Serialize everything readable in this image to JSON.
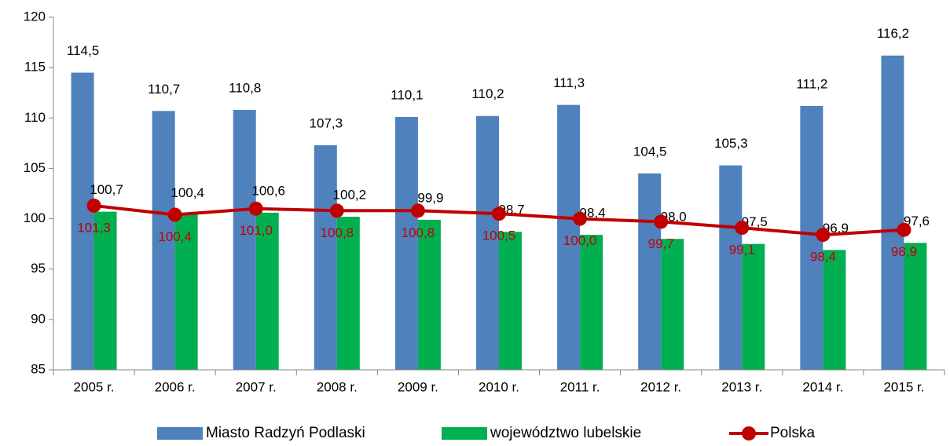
{
  "chart_data": {
    "type": "bar-line",
    "categories": [
      "2005 r.",
      "2006 r.",
      "2007 r.",
      "2008 r.",
      "2009 r.",
      "2010 r.",
      "2011 r.",
      "2012 r.",
      "2013 r.",
      "2014 r.",
      "2015 r."
    ],
    "series": [
      {
        "name": "Miasto Radzyń Podlaski",
        "type": "bar",
        "color": "#4f81bd",
        "values": [
          114.5,
          110.7,
          110.8,
          107.3,
          110.1,
          110.2,
          111.3,
          104.5,
          105.3,
          111.2,
          116.2
        ],
        "value_labels": [
          "114,5",
          "110,7",
          "110,8",
          "107,3",
          "110,1",
          "110,2",
          "111,3",
          "104,5",
          "105,3",
          "111,2",
          "116,2"
        ]
      },
      {
        "name": "województwo lubelskie",
        "type": "bar",
        "color": "#00b050",
        "values": [
          100.7,
          100.4,
          100.6,
          100.2,
          99.9,
          98.7,
          98.4,
          98.0,
          97.5,
          96.9,
          97.6
        ],
        "value_labels": [
          "100,7",
          "100,4",
          "100,6",
          "100,2",
          "99,9",
          "98,7",
          "98,4",
          "98,0",
          "97,5",
          "96,9",
          "97,6"
        ]
      },
      {
        "name": "Polska",
        "type": "line",
        "color": "#c00000",
        "values": [
          101.3,
          100.4,
          101.0,
          100.8,
          100.8,
          100.5,
          100.0,
          99.7,
          99.1,
          98.4,
          98.9
        ],
        "value_labels": [
          "101,3",
          "100,4",
          "101,0",
          "100,8",
          "100,8",
          "100,5",
          "100,0",
          "99,7",
          "99,1",
          "98,4",
          "98,9"
        ]
      }
    ],
    "ylim": [
      85,
      120
    ],
    "yticks": [
      85,
      90,
      95,
      100,
      105,
      110,
      115,
      120
    ],
    "grid": false,
    "legend": "bottom"
  }
}
